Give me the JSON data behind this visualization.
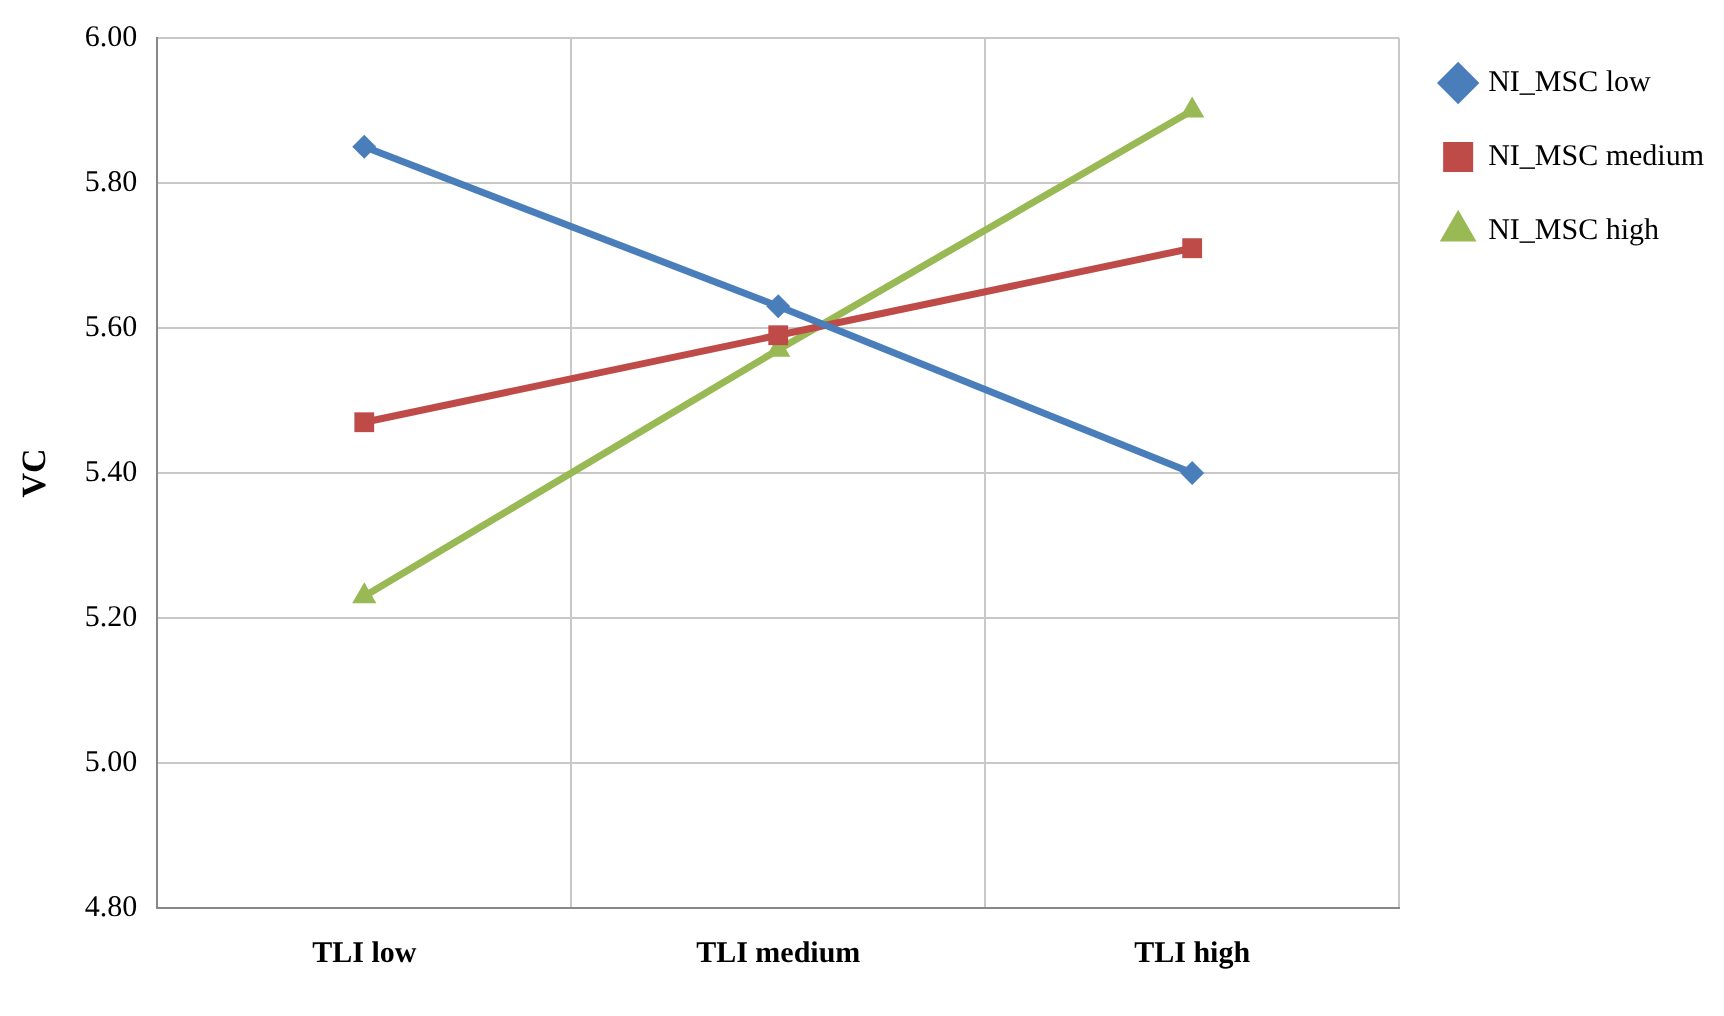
{
  "chart_data": {
    "type": "line",
    "ylabel": "VC",
    "categories": [
      "TLI low",
      "TLI medium",
      "TLI high"
    ],
    "series": [
      {
        "name": "NI_MSC low",
        "color": "#4a7ebb",
        "marker": "diamond",
        "values": [
          5.85,
          5.63,
          5.4
        ]
      },
      {
        "name": "NI_MSC medium",
        "color": "#be4b48",
        "marker": "square",
        "values": [
          5.47,
          5.59,
          5.71
        ]
      },
      {
        "name": "NI_MSC high",
        "color": "#98b954",
        "marker": "triangle",
        "values": [
          5.23,
          5.57,
          5.9
        ]
      }
    ],
    "ylim": [
      4.8,
      6.0
    ],
    "yticks": [
      {
        "value": 4.8,
        "label": "4.80"
      },
      {
        "value": 5.0,
        "label": "5.00"
      },
      {
        "value": 5.2,
        "label": "5.20"
      },
      {
        "value": 5.4,
        "label": "5.40"
      },
      {
        "value": 5.6,
        "label": "5.60"
      },
      {
        "value": 5.8,
        "label": "5.80"
      },
      {
        "value": 6.0,
        "label": "6.00"
      }
    ],
    "grid": true,
    "legend": "top right",
    "line_style": "solid"
  }
}
